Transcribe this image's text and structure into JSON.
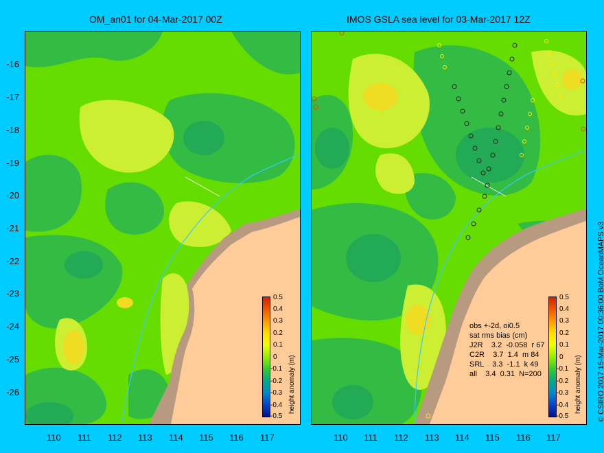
{
  "left_map": {
    "title": "OM_an01 for 04-Mar-2017 00Z"
  },
  "right_map": {
    "title": "IMOS GSLA sea level  for 03-Mar-2017 12Z"
  },
  "x_ticks": [
    "110",
    "111",
    "112",
    "113",
    "114",
    "115",
    "116",
    "117"
  ],
  "y_ticks": [
    "-16",
    "-17",
    "-18",
    "-19",
    "-20",
    "-21",
    "-22",
    "-23",
    "-24",
    "-25",
    "-26"
  ],
  "colorbar": {
    "title": "height anomaly (m)",
    "labels": [
      "0.5",
      "0.4",
      "0.3",
      "0.2",
      "0.1",
      "0",
      "-0.1",
      "-0.2",
      "-0.3",
      "-0.4",
      "-0.5"
    ],
    "colors": [
      "#cc2200",
      "#ee5500",
      "#ff9900",
      "#ffdd00",
      "#eeff00",
      "#99ee00",
      "#33cc33",
      "#00aa88",
      "#0088cc",
      "#0044cc",
      "#001188"
    ]
  },
  "stats": {
    "line1": "obs +-2d, oi0.5",
    "line2": "sat rms bias (cm)",
    "line3": "J2R    3.2  -0.058  r 67",
    "line4": "C2R    3.7  1.4  m 84",
    "line5": "SRL    3.3  -1.1  k 49",
    "line6": "all    3.4  0.31  N=200"
  },
  "credit": "© CSIRO 2017  15-Mar-2017 00:36:00 BoM OceanMAPS v3",
  "colors": {
    "background": "#00ccff",
    "land": "#ffcc99",
    "shelf": "#b89a80",
    "sea_base": "#66dd00",
    "sea_low": "#33bb44",
    "sea_lower": "#22aa55",
    "sea_high": "#ccee33",
    "sea_higher": "#eedd22",
    "bathymetry_line": "#33ccff"
  }
}
